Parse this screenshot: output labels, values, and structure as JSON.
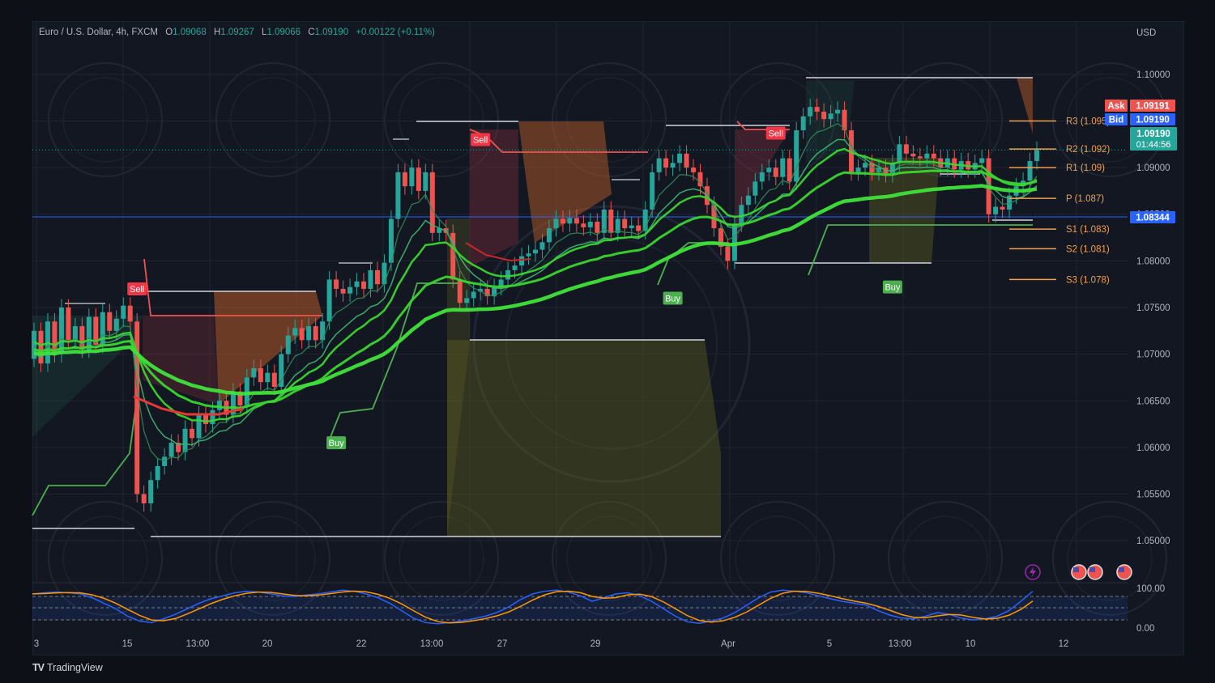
{
  "header": {
    "symbol": "Euro / U.S. Dollar, 4h, FXCM",
    "o_label": "O",
    "o": "1.09068",
    "h_label": "H",
    "h": "1.09267",
    "l_label": "L",
    "l": "1.09066",
    "c_label": "C",
    "c": "1.09190",
    "change": "+0.00122 (+0.11%)"
  },
  "currency": "USD",
  "price_labels": {
    "ask_tag": "Ask",
    "ask": "1.09191",
    "bid_tag": "Bid",
    "bid": "1.09190",
    "last": "1.09190",
    "countdown": "01:44:56",
    "hline": "1.08344"
  },
  "colors": {
    "bull": "#26a69a",
    "bear": "#ef5350",
    "sell": "#f23645",
    "buy": "#4caf50",
    "ema": "#39d62e",
    "pivot": "#f0a050",
    "stoch_k": "#2962ff",
    "stoch_d": "#ff9800",
    "hline": "#2962ff",
    "bg": "#131722"
  },
  "footer": {
    "brand": "TradingView"
  },
  "chart_data": {
    "type": "candlestick",
    "ylim": [
      1.0455,
      1.1045
    ],
    "y_ticks": [
      "1.10000",
      "1.09500",
      "1.09000",
      "1.08500",
      "1.08000",
      "1.07500",
      "1.07000",
      "1.06500",
      "1.06000",
      "1.05500",
      "1.05000"
    ],
    "x_ticks": [
      "3",
      "15",
      "13:00",
      "20",
      "22",
      "13:00",
      "27",
      "29",
      "Apr",
      "5",
      "13:00",
      "10",
      "12"
    ],
    "candles": [
      [
        1.0695,
        1.0725
      ],
      [
        1.0725,
        1.069
      ],
      [
        1.069,
        1.0735
      ],
      [
        1.0735,
        1.07
      ],
      [
        1.07,
        1.075
      ],
      [
        1.075,
        1.0715
      ],
      [
        1.0715,
        1.073
      ],
      [
        1.073,
        1.0705
      ],
      [
        1.0705,
        1.074
      ],
      [
        1.074,
        1.071
      ],
      [
        1.071,
        1.0745
      ],
      [
        1.0745,
        1.0725
      ],
      [
        1.0725,
        1.0738
      ],
      [
        1.0738,
        1.0752
      ],
      [
        1.0752,
        1.0735
      ],
      [
        1.0735,
        1.055
      ],
      [
        1.055,
        1.054
      ],
      [
        1.054,
        1.0565
      ],
      [
        1.0565,
        1.058
      ],
      [
        1.058,
        1.059
      ],
      [
        1.059,
        1.0605
      ],
      [
        1.0605,
        1.0595
      ],
      [
        1.0595,
        1.062
      ],
      [
        1.062,
        1.061
      ],
      [
        1.061,
        1.0635
      ],
      [
        1.0635,
        1.0625
      ],
      [
        1.0625,
        1.064
      ],
      [
        1.064,
        1.065
      ],
      [
        1.065,
        1.0635
      ],
      [
        1.0635,
        1.066
      ],
      [
        1.066,
        1.0645
      ],
      [
        1.0645,
        1.0675
      ],
      [
        1.0675,
        1.0685
      ],
      [
        1.0685,
        1.067
      ],
      [
        1.067,
        1.068
      ],
      [
        1.068,
        1.0665
      ],
      [
        1.0665,
        1.07
      ],
      [
        1.07,
        1.072
      ],
      [
        1.072,
        1.0728
      ],
      [
        1.0728,
        1.0715
      ],
      [
        1.0715,
        1.073
      ],
      [
        1.073,
        1.0715
      ],
      [
        1.0715,
        1.0735
      ],
      [
        1.0735,
        1.078
      ],
      [
        1.078,
        1.077
      ],
      [
        1.077,
        1.0765
      ],
      [
        1.0765,
        1.0772
      ],
      [
        1.0772,
        1.0778
      ],
      [
        1.0778,
        1.077
      ],
      [
        1.077,
        1.079
      ],
      [
        1.079,
        1.0775
      ],
      [
        1.0775,
        1.0798
      ],
      [
        1.0798,
        1.0845
      ],
      [
        1.0845,
        1.0895
      ],
      [
        1.0895,
        1.088
      ],
      [
        1.088,
        1.09
      ],
      [
        1.09,
        1.0875
      ],
      [
        1.0875,
        1.0895
      ],
      [
        1.0895,
        1.083
      ],
      [
        1.083,
        1.0835
      ],
      [
        1.0835,
        1.083
      ],
      [
        1.083,
        1.078
      ],
      [
        1.078,
        1.0755
      ],
      [
        1.0755,
        1.076
      ],
      [
        1.076,
        1.0767
      ],
      [
        1.0767,
        1.077
      ],
      [
        1.077,
        1.0762
      ],
      [
        1.0762,
        1.0772
      ],
      [
        1.0772,
        1.078
      ],
      [
        1.078,
        1.079
      ],
      [
        1.079,
        1.0795
      ],
      [
        1.0795,
        1.0805
      ],
      [
        1.0805,
        1.0808
      ],
      [
        1.0808,
        1.0812
      ],
      [
        1.0812,
        1.082
      ],
      [
        1.082,
        1.0835
      ],
      [
        1.0835,
        1.0845
      ],
      [
        1.0845,
        1.084
      ],
      [
        1.084,
        1.0846
      ],
      [
        1.0846,
        1.084
      ],
      [
        1.084,
        1.0836
      ],
      [
        1.0836,
        1.0842
      ],
      [
        1.0842,
        1.083
      ],
      [
        1.083,
        1.0855
      ],
      [
        1.0855,
        1.083
      ],
      [
        1.083,
        1.0845
      ],
      [
        1.0845,
        1.0835
      ],
      [
        1.0835,
        1.0838
      ],
      [
        1.0838,
        1.0832
      ],
      [
        1.0832,
        1.0855
      ],
      [
        1.0855,
        1.0895
      ],
      [
        1.0895,
        1.091
      ],
      [
        1.091,
        1.09
      ],
      [
        1.09,
        1.0905
      ],
      [
        1.0905,
        1.0915
      ],
      [
        1.0915,
        1.09
      ],
      [
        1.09,
        1.0895
      ],
      [
        1.0895,
        1.088
      ],
      [
        1.088,
        1.086
      ],
      [
        1.086,
        1.0835
      ],
      [
        1.0835,
        1.0815
      ],
      [
        1.0815,
        1.08
      ],
      [
        1.08,
        1.084
      ],
      [
        1.084,
        1.086
      ],
      [
        1.086,
        1.087
      ],
      [
        1.087,
        1.0885
      ],
      [
        1.0885,
        1.0895
      ],
      [
        1.0895,
        1.09
      ],
      [
        1.09,
        1.089
      ],
      [
        1.089,
        1.091
      ],
      [
        1.091,
        1.0885
      ],
      [
        1.0885,
        1.094
      ],
      [
        1.094,
        1.0955
      ],
      [
        1.0955,
        1.0965
      ],
      [
        1.0965,
        1.096
      ],
      [
        1.096,
        1.0952
      ],
      [
        1.0952,
        1.0958
      ],
      [
        1.0958,
        1.0962
      ],
      [
        1.0962,
        1.094
      ],
      [
        1.094,
        1.0895
      ],
      [
        1.0895,
        1.09
      ],
      [
        1.09,
        1.0905
      ],
      [
        1.0905,
        1.0895
      ],
      [
        1.0895,
        1.09
      ],
      [
        1.09,
        1.0893
      ],
      [
        1.0893,
        1.0905
      ],
      [
        1.0905,
        1.0925
      ],
      [
        1.0925,
        1.0915
      ],
      [
        1.0915,
        1.0912
      ],
      [
        1.0912,
        1.091
      ],
      [
        1.091,
        1.0915
      ],
      [
        1.0915,
        1.091
      ],
      [
        1.091,
        1.09
      ],
      [
        1.09,
        1.091
      ],
      [
        1.091,
        1.0898
      ],
      [
        1.0898,
        1.0907
      ],
      [
        1.0907,
        1.0898
      ],
      [
        1.0898,
        1.0905
      ],
      [
        1.0905,
        1.091
      ],
      [
        1.091,
        1.085
      ],
      [
        1.085,
        1.0858
      ],
      [
        1.0858,
        1.0855
      ],
      [
        1.0855,
        1.087
      ],
      [
        1.087,
        1.088
      ],
      [
        1.088,
        1.0886
      ],
      [
        1.0886,
        1.0907
      ],
      [
        1.0907,
        1.0919
      ]
    ],
    "pivots": [
      {
        "label": "R3 (1.095)",
        "value": 1.095
      },
      {
        "label": "R2 (1.092)",
        "value": 1.092
      },
      {
        "label": "R1 (1.09)",
        "value": 1.09
      },
      {
        "label": "P (1.087)",
        "value": 1.0867
      },
      {
        "label": "S1 (1.083)",
        "value": 1.0834
      },
      {
        "label": "S2 (1.081)",
        "value": 1.0813
      },
      {
        "label": "S3 (1.078)",
        "value": 1.078
      }
    ],
    "signals": [
      {
        "type": "sell",
        "label": "Sell",
        "candle": 15,
        "price": 1.077
      },
      {
        "type": "buy",
        "label": "Buy",
        "candle": 44,
        "price": 1.0605
      },
      {
        "type": "sell",
        "label": "Sell",
        "candle": 65,
        "price": 1.093
      },
      {
        "type": "buy",
        "label": "Buy",
        "candle": 93,
        "price": 1.076
      },
      {
        "type": "sell",
        "label": "Sell",
        "candle": 108,
        "price": 1.0937
      },
      {
        "type": "buy",
        "label": "Buy",
        "candle": 125,
        "price": 1.0772
      }
    ],
    "ema_levels": [
      1.0625,
      1.0655,
      1.071,
      1.0755,
      1.079,
      1.083,
      1.085
    ],
    "stoch_ticks": [
      "100.00",
      "0.00"
    ]
  }
}
